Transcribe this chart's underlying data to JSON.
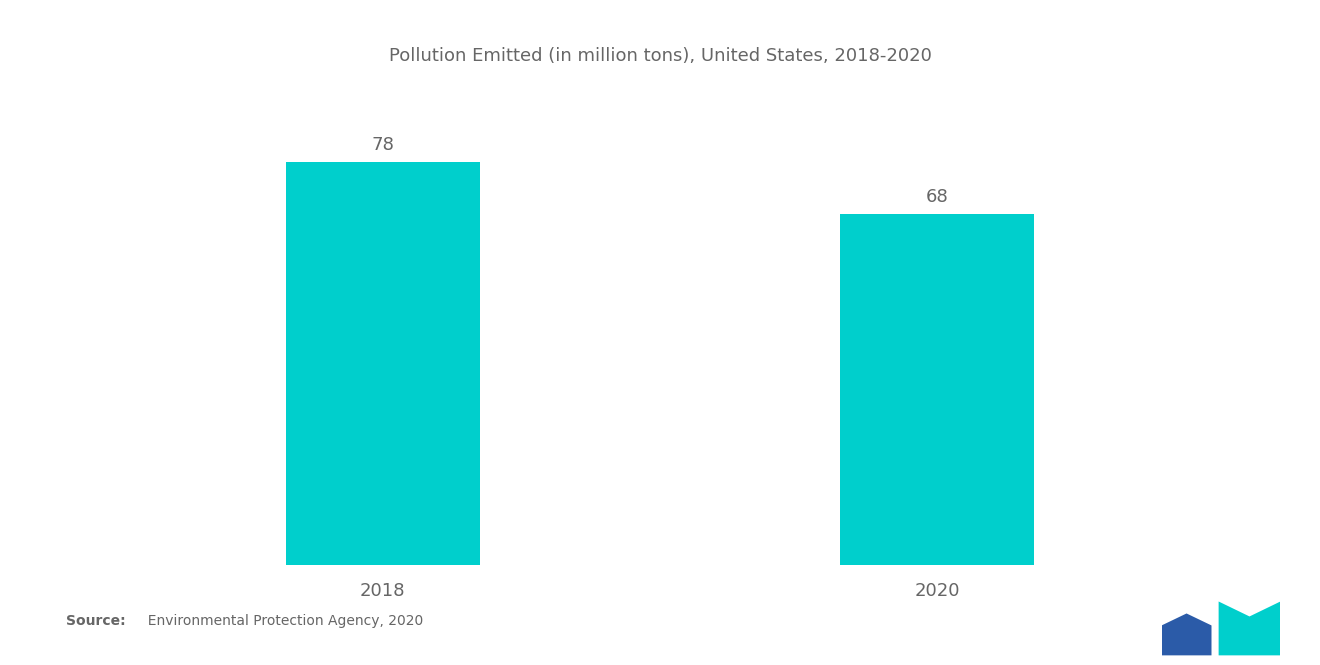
{
  "title": "Pollution Emitted (in million tons), United States, 2018-2020",
  "categories": [
    "2018",
    "2020"
  ],
  "values": [
    78,
    68
  ],
  "bar_color": "#00CFCC",
  "background_color": "#FFFFFF",
  "text_color": "#666666",
  "title_fontsize": 13,
  "label_fontsize": 13,
  "value_fontsize": 13,
  "source_bold": "Source:",
  "source_rest": "  Environmental Protection Agency, 2020",
  "bar_width": 0.35,
  "ylim": [
    0,
    90
  ],
  "logo_colors": {
    "dark_blue": "#2B5BA8",
    "teal": "#00CFCC"
  }
}
